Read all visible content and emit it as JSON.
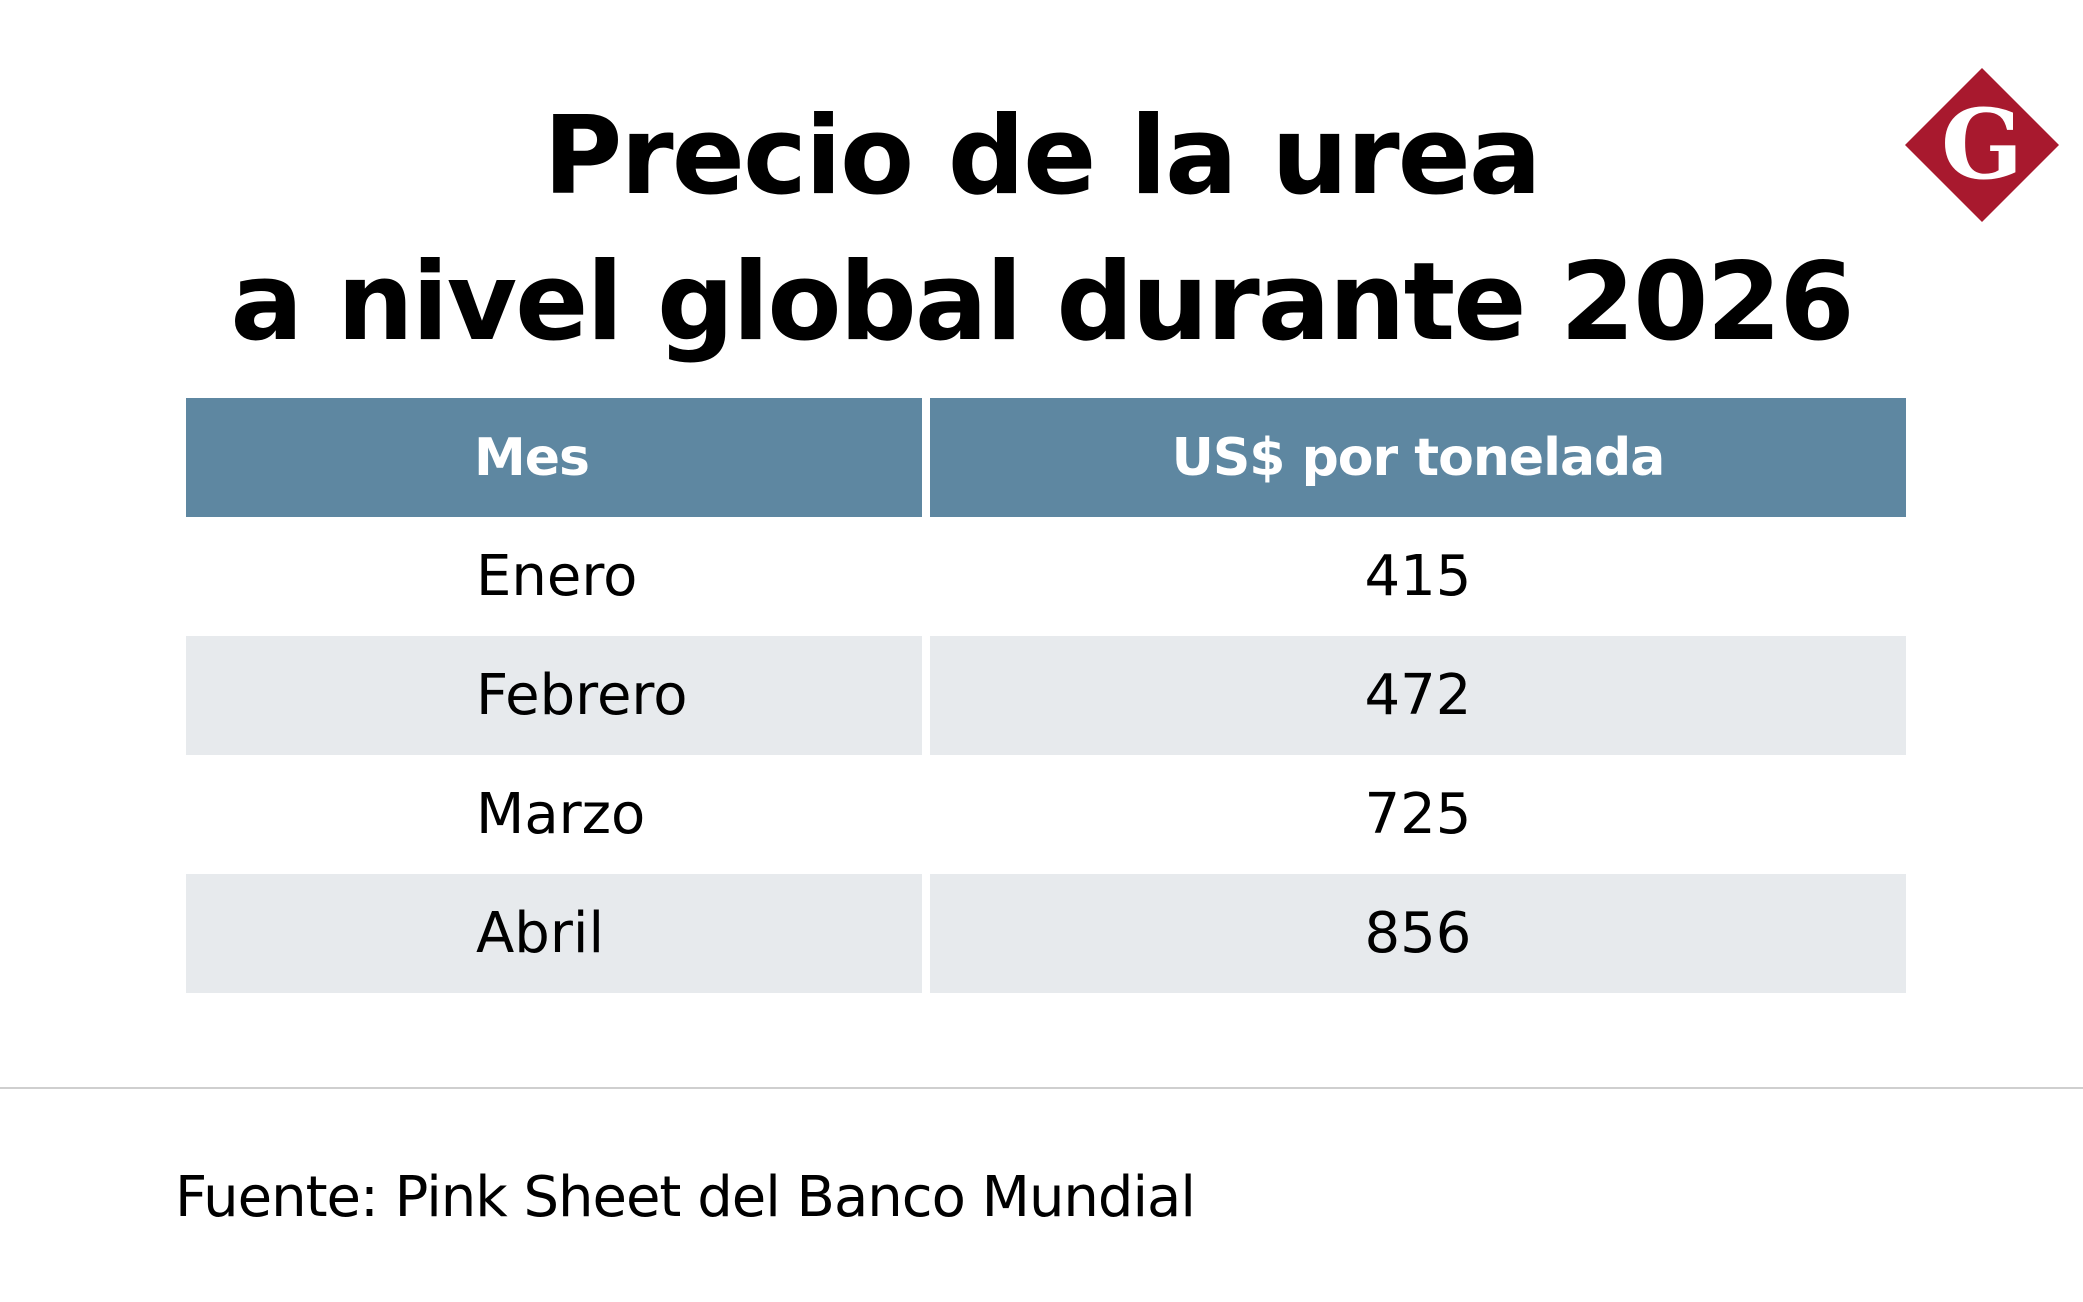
{
  "title": {
    "line1": "Precio de la urea",
    "line2": "a nivel global durante 2026"
  },
  "logo": {
    "letter": "G",
    "icon": "brand-diamond-logo-icon",
    "color": "#a8192e"
  },
  "chart_data": {
    "type": "table",
    "title": "Precio de la urea a nivel global durante 2026",
    "columns": [
      "Mes",
      "US$ por tonelada"
    ],
    "rows": [
      {
        "month": "Enero",
        "value": "415"
      },
      {
        "month": "Febrero",
        "value": "472"
      },
      {
        "month": "Marzo",
        "value": "725"
      },
      {
        "month": "Abril",
        "value": "856"
      }
    ],
    "header_color": "#5e87a1",
    "stripe_color": "#e7eaed"
  },
  "source": "Fuente: Pink Sheet del Banco Mundial"
}
